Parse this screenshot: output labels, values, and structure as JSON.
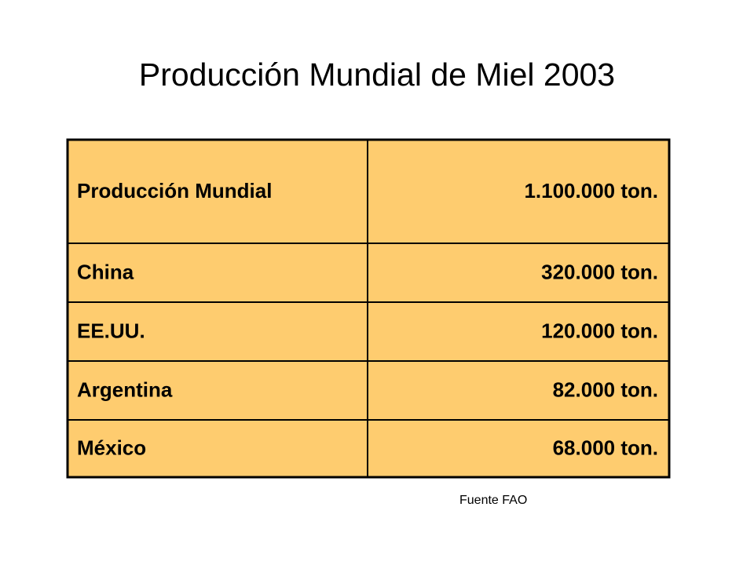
{
  "header": {
    "title": "Producción Mundial de Miel 2003"
  },
  "table": {
    "rows": [
      [
        "Producción Mundial",
        "1.100.000 ton."
      ],
      [
        "China",
        "320.000 ton."
      ],
      [
        "EE.UU.",
        "120.000 ton."
      ],
      [
        "Argentina",
        "82.000 ton."
      ],
      [
        "México",
        "68.000 ton."
      ]
    ]
  },
  "source": "Fuente FAO"
}
